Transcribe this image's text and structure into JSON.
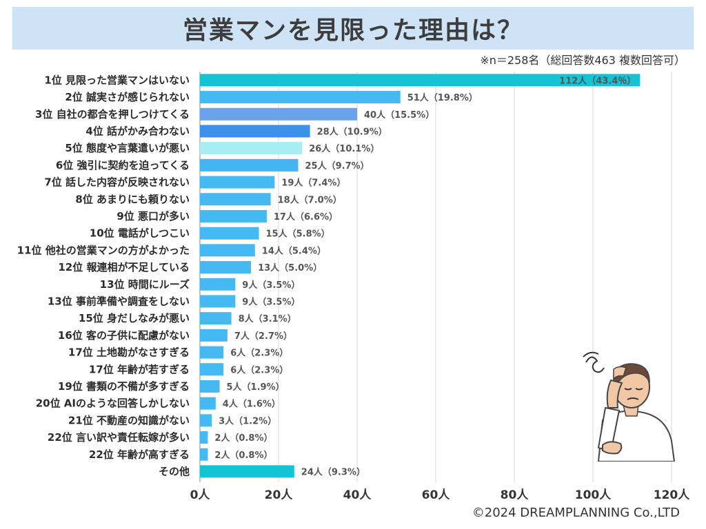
{
  "header": {
    "title": "営業マンを見限った理由は？",
    "note": "※n＝258名（総回答数463 複数回答可）"
  },
  "footer": {
    "credit": "©2024 DREAMPLANNING Co.,LTD"
  },
  "chart_data": {
    "type": "bar",
    "orientation": "horizontal",
    "title": "営業マンを見限った理由は？",
    "xlim": [
      0,
      120
    ],
    "x_ticks": [
      "0人",
      "20人",
      "40人",
      "60人",
      "80人",
      "100人",
      "120人"
    ],
    "x_tick_values": [
      0,
      20,
      40,
      60,
      80,
      100,
      120
    ],
    "grid": "vertical",
    "categories": [
      "1位 見限った営業マンはいない",
      "2位 誠実さが感じられない",
      "3位 自社の都合を押しつけてくる",
      "4位 話がかみ合わない",
      "5位 態度や言葉遣いが悪い",
      "6位 強引に契約を迫ってくる",
      "7位 話した内容が反映されない",
      "8位 あまりにも頼りない",
      "9位 悪口が多い",
      "10位 電話がしつこい",
      "11位 他社の営業マンの方がよかった",
      "12位 報連相が不足している",
      "13位 時間にルーズ",
      "13位 事前準備や調査をしない",
      "15位 身だしなみが悪い",
      "16位 客の子供に配慮がない",
      "17位 土地勘がなさすぎる",
      "17位 年齢が若すぎる",
      "19位 書類の不備が多すぎる",
      "20位 AIのような回答しかしない",
      "21位 不動産の知識がない",
      "22位 言い訳や責任転嫁が多い",
      "22位 年齢が高すぎる",
      "その他"
    ],
    "values": [
      112,
      51,
      40,
      28,
      26,
      25,
      19,
      18,
      17,
      15,
      14,
      13,
      9,
      9,
      8,
      7,
      6,
      6,
      5,
      4,
      3,
      2,
      2,
      24
    ],
    "value_labels": [
      "112人（43.4％）",
      "51人（19.8%）",
      "40人（15.5%）",
      "28人（10.9%）",
      "26人（10.1%）",
      "25人（9.7%）",
      "19人（7.4%）",
      "18人（7.0%）",
      "17人（6.6%）",
      "15人（5.8%）",
      "14人（5.4%）",
      "13人（5.0%）",
      "9人（3.5%）",
      "9人（3.5%）",
      "8人（3.1%）",
      "7人（2.7%）",
      "6人（2.3%）",
      "6人（2.3%）",
      "5人（1.9%）",
      "4人（1.6%）",
      "3人（1.2%）",
      "2人（0.8%）",
      "2人（0.8%）",
      "24人（9.3%）"
    ],
    "colors": [
      "#14c4d4",
      "#45b9f2",
      "#6aa2ee",
      "#3b91e8",
      "#a4eef4",
      "#45b3f0",
      "#45b9f2",
      "#45b9f2",
      "#45b9f2",
      "#45b9f2",
      "#45b9f2",
      "#45b9f2",
      "#45b9f2",
      "#45b9f2",
      "#45b9f2",
      "#45b9f2",
      "#45b9f2",
      "#45b9f2",
      "#45b9f2",
      "#45b9f2",
      "#45b9f2",
      "#45b9f2",
      "#45b9f2",
      "#14c4d4"
    ]
  }
}
